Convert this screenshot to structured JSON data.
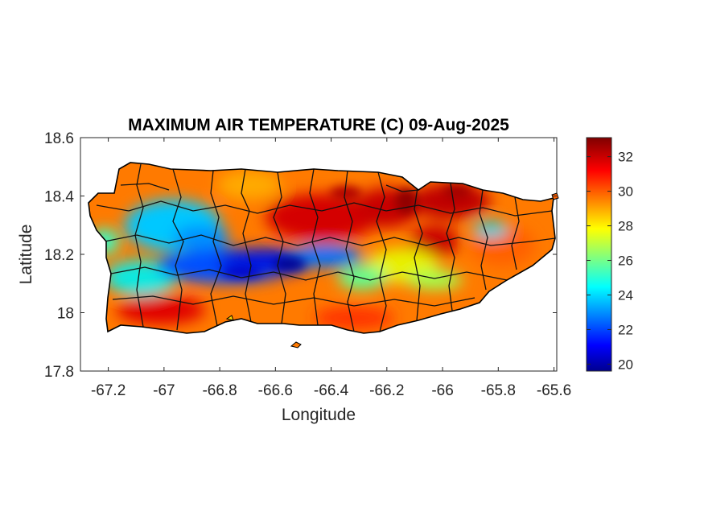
{
  "chart_data": {
    "type": "heatmap",
    "title": "MAXIMUM AIR TEMPERATURE (C) 09-Aug-2025",
    "xlabel": "Longitude",
    "ylabel": "Latitude",
    "xlim": [
      -67.3,
      -65.59
    ],
    "ylim": [
      17.8,
      18.6
    ],
    "x_ticks": [
      -67.2,
      -67,
      -66.8,
      -66.6,
      -66.4,
      -66.2,
      -66,
      -65.8,
      -65.6
    ],
    "x_tick_labels": [
      "-67.2",
      "-67",
      "-66.8",
      "-66.6",
      "-66.4",
      "-66.2",
      "-66",
      "-65.8",
      "-65.6"
    ],
    "y_ticks": [
      17.8,
      18,
      18.2,
      18.4,
      18.6
    ],
    "y_tick_labels": [
      "17.8",
      "18",
      "18.2",
      "18.4",
      "18.6"
    ],
    "colorbar": {
      "colormap": "jet",
      "range": [
        19.6,
        33.1
      ],
      "ticks": [
        20,
        22,
        24,
        26,
        28,
        30,
        32
      ],
      "tick_labels": [
        "20",
        "22",
        "24",
        "26",
        "28",
        "30",
        "32"
      ]
    },
    "region": "Puerto Rico",
    "pattern": "cool interior (about 20-25 C) along central mountains, hot coasts (30-33 C), hottest in north-central and northeast"
  }
}
